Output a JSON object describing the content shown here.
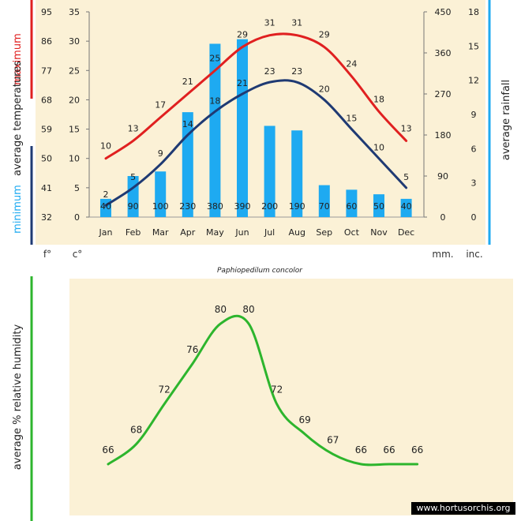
{
  "chart_data": [
    {
      "type": "bar-line",
      "title": "Paphiopedilum concolor",
      "categories": [
        "Jan",
        "Feb",
        "Mar",
        "Apr",
        "May",
        "Jun",
        "Jul",
        "Aug",
        "Sep",
        "Oct",
        "Nov",
        "Dec"
      ],
      "series": [
        {
          "name": "maximum",
          "kind": "line",
          "color": "#e02020",
          "values": [
            10,
            13,
            17,
            21,
            25,
            29,
            31,
            31,
            29,
            24,
            18,
            13
          ]
        },
        {
          "name": "minimum",
          "kind": "line",
          "color": "#1f3a73",
          "values": [
            2,
            5,
            9,
            14,
            18,
            21,
            23,
            23,
            20,
            15,
            10,
            5
          ]
        },
        {
          "name": "average rainfall",
          "kind": "bar",
          "color": "#1eaaf1",
          "unit": "mm.",
          "values": [
            40,
            90,
            100,
            230,
            380,
            390,
            200,
            190,
            70,
            60,
            50,
            40
          ]
        }
      ],
      "celsius_axis": {
        "label": "c°",
        "ticks": [
          "0",
          "5",
          "10",
          "15",
          "20",
          "25",
          "30",
          "35"
        ],
        "range": [
          0,
          35
        ]
      },
      "fahrenheit_axis": {
        "label": "f°",
        "ticks": [
          "32",
          "41",
          "50",
          "59",
          "68",
          "77",
          "86",
          "95"
        ]
      },
      "mm_axis": {
        "label": "mm.",
        "ticks": [
          "0",
          "90",
          "180",
          "270",
          "360",
          "450"
        ],
        "range": [
          0,
          450
        ]
      },
      "inch_axis": {
        "label": "inc.",
        "ticks": [
          "0",
          "3",
          "6",
          "9",
          "12",
          "15",
          "18"
        ]
      },
      "ylabel_left_max": "maximum",
      "ylabel_left_avg": "average temperatures",
      "ylabel_left_min": "minimum",
      "ylabel_right": "average rainfall"
    },
    {
      "type": "line",
      "ylabel": "average %  relative humidity",
      "color": "#2db52d",
      "values": [
        66,
        68,
        72,
        76,
        80,
        80,
        72,
        69,
        67,
        66,
        66,
        66
      ]
    }
  ],
  "watermark": "www.hortusorchis.org",
  "colors": {
    "panel": "#fbf1d6",
    "max": "#e02020",
    "min": "#1f3a73",
    "rain": "#1eaaf1",
    "humidity": "#2db52d"
  }
}
